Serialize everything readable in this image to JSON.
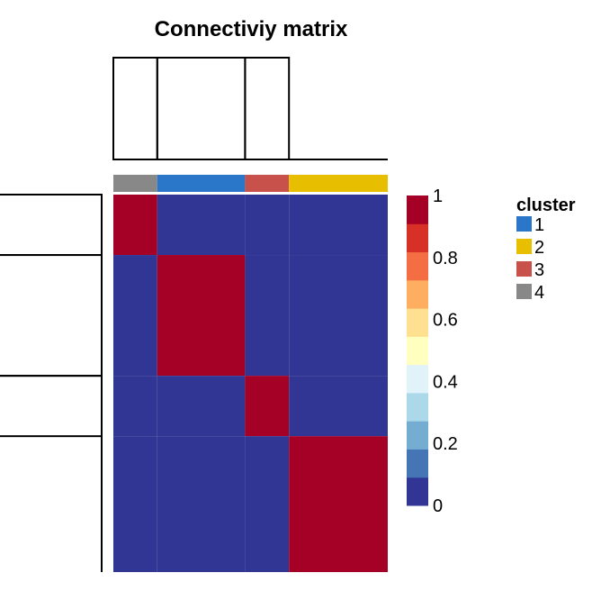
{
  "chart_data": {
    "type": "heatmap",
    "title": "Connectiviy matrix",
    "cluster_order": [
      "4",
      "1",
      "3",
      "2"
    ],
    "cluster_sizes": [
      4,
      8,
      4,
      9
    ],
    "values": [
      [
        1,
        0,
        0,
        0
      ],
      [
        0,
        1,
        0,
        0
      ],
      [
        0,
        0,
        1,
        0
      ],
      [
        0,
        0,
        0,
        1
      ]
    ],
    "color_scale": {
      "min": 0,
      "max": 1,
      "ticks": [
        "0",
        "0.2",
        "0.4",
        "0.6",
        "0.8",
        "1"
      ],
      "colors": [
        "#313695",
        "#4575b4",
        "#74add1",
        "#abd9e9",
        "#e0f3f8",
        "#ffffbf",
        "#fee090",
        "#fdae61",
        "#f46d43",
        "#d73027",
        "#a50026"
      ]
    },
    "legend": {
      "title": "cluster",
      "entries": [
        {
          "label": "1",
          "color": "#2a76c9"
        },
        {
          "label": "2",
          "color": "#e8bf00"
        },
        {
          "label": "3",
          "color": "#c8514b"
        },
        {
          "label": "4",
          "color": "#888888"
        }
      ]
    }
  }
}
